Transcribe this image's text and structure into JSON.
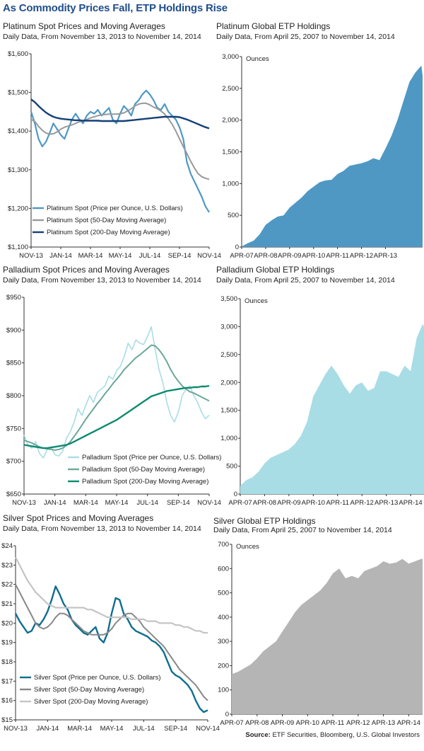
{
  "title": "As Commodity Prices Fall, ETP Holdings Rise",
  "source_label": "Source:",
  "source_text": "ETF Securities, Bloomberg, U.S. Global Investors",
  "colors": {
    "title": "#1f4e8c",
    "platinum": "#4f98c4",
    "platinum_200": "#153f78",
    "palladium": "#a8dde6",
    "palladium_ma": "#6ba899",
    "palladium_200": "#0e8a70",
    "silver": "#0f6e8f",
    "silver_50": "#888888",
    "silver_200": "#c4c4c4",
    "silver_etp": "#b5b5b5"
  },
  "chart_data": [
    {
      "id": "platinum-spot",
      "type": "line",
      "title": "Platinum Spot Prices and Moving Averages",
      "subtitle": "Daily Data, From November 13, 2013 to November 14, 2014",
      "ylim": [
        1100,
        1600
      ],
      "yticks": [
        "$1,100",
        "$1,200",
        "$1,300",
        "$1,400",
        "$1,500",
        "$1,600"
      ],
      "xticks": [
        "NOV-13",
        "JAN-14",
        "MAR-14",
        "MAY-14",
        "JUL-14",
        "SEP-14",
        "NOV-14"
      ],
      "grid": false,
      "legend": "bottom-left",
      "x": [
        0,
        0.25,
        0.5,
        0.75,
        1,
        1.25,
        1.5,
        1.75,
        2,
        2.25,
        2.5,
        2.75,
        3,
        3.25,
        3.5,
        3.75,
        4,
        4.25,
        4.5,
        4.75,
        5,
        5.25,
        5.5,
        5.75,
        6,
        6.25,
        6.5,
        6.75,
        7,
        7.25,
        7.5,
        7.75,
        8,
        8.25,
        8.5,
        8.75,
        9,
        9.25,
        9.5,
        9.75,
        10,
        10.25,
        10.5,
        10.75,
        11,
        11.25,
        11.5,
        11.75,
        12
      ],
      "series": [
        {
          "name": "Platinum Spot (Price per Ounce, U.S. Dollars)",
          "color": "#4f98c4",
          "width": 2.2,
          "values": [
            1450,
            1420,
            1380,
            1360,
            1372,
            1395,
            1420,
            1405,
            1390,
            1380,
            1405,
            1430,
            1445,
            1430,
            1420,
            1440,
            1450,
            1445,
            1455,
            1440,
            1450,
            1460,
            1430,
            1420,
            1445,
            1465,
            1455,
            1440,
            1470,
            1480,
            1495,
            1505,
            1495,
            1480,
            1460,
            1455,
            1470,
            1450,
            1440,
            1430,
            1410,
            1380,
            1320,
            1290,
            1270,
            1250,
            1230,
            1205,
            1190
          ]
        },
        {
          "name": "Platinum Spot (50-Day Moving Average)",
          "color": "#999999",
          "width": 2,
          "values": [
            1430,
            1425,
            1412,
            1402,
            1395,
            1392,
            1393,
            1398,
            1405,
            1410,
            1413,
            1416,
            1420,
            1424,
            1427,
            1430,
            1434,
            1437,
            1440,
            1442,
            1443,
            1444,
            1444,
            1444,
            1445,
            1447,
            1452,
            1458,
            1465,
            1470,
            1472,
            1472,
            1468,
            1462,
            1458,
            1452,
            1444,
            1432,
            1418,
            1400,
            1380,
            1360,
            1342,
            1322,
            1305,
            1290,
            1282,
            1278,
            1275
          ]
        },
        {
          "name": "Platinum Spot (200-Day Moving Average)",
          "color": "#153f78",
          "width": 2.4,
          "values": [
            1482,
            1475,
            1465,
            1456,
            1448,
            1442,
            1437,
            1434,
            1432,
            1431,
            1430,
            1429,
            1428,
            1428,
            1427,
            1427,
            1427,
            1427,
            1427,
            1426,
            1426,
            1426,
            1426,
            1426,
            1426,
            1426,
            1427,
            1428,
            1429,
            1430,
            1431,
            1432,
            1433,
            1434,
            1435,
            1436,
            1437,
            1437,
            1437,
            1437,
            1436,
            1433,
            1430,
            1426,
            1422,
            1418,
            1414,
            1410,
            1407
          ]
        }
      ]
    },
    {
      "id": "platinum-etp",
      "type": "area",
      "title": "Platinum Global ETP Holdings",
      "subtitle": "Daily Data, From April 25, 2007 to November 14, 2014",
      "ylabel": "Ounces",
      "unit_label": "Ounces",
      "ylim": [
        0,
        3000
      ],
      "yticks": [
        "0",
        "500",
        "1,000",
        "1,500",
        "2,000",
        "2,500",
        "3,000"
      ],
      "xticks": [
        "APR-07",
        "APR-08",
        "APR-09",
        "APR-10",
        "APR-11",
        "APR-12",
        "APR-13"
      ],
      "color": "#4f98c4",
      "x": [
        0,
        0.25,
        0.5,
        0.75,
        1,
        1.25,
        1.5,
        1.75,
        2,
        2.25,
        2.5,
        2.75,
        3,
        3.25,
        3.5,
        3.75,
        4,
        4.25,
        4.5,
        4.75,
        5,
        5.25,
        5.5,
        5.75,
        6,
        6.25,
        6.5,
        6.75,
        7,
        7.25,
        7.5,
        7.55
      ],
      "values": [
        10,
        60,
        100,
        200,
        350,
        420,
        480,
        500,
        620,
        700,
        780,
        880,
        950,
        1020,
        1050,
        1060,
        1150,
        1200,
        1280,
        1300,
        1320,
        1350,
        1400,
        1370,
        1550,
        1750,
        2000,
        2300,
        2600,
        2750,
        2860,
        2700
      ]
    },
    {
      "id": "palladium-spot",
      "type": "line",
      "title": "Palladium Spot Prices and Moving Averages",
      "subtitle": "Daily Data, From November 13, 2013 to November 14, 2014",
      "ylim": [
        650,
        950
      ],
      "yticks": [
        "$650",
        "$700",
        "$750",
        "$800",
        "$850",
        "$900",
        "$950"
      ],
      "xticks": [
        "NOV-13",
        "JAN-14",
        "MAR-14",
        "MAY-14",
        "JUL-14",
        "SEP-14",
        "NOV-14"
      ],
      "grid": false,
      "legend": "bottom-center",
      "x": [
        0,
        0.25,
        0.5,
        0.75,
        1,
        1.25,
        1.5,
        1.75,
        2,
        2.25,
        2.5,
        2.75,
        3,
        3.25,
        3.5,
        3.75,
        4,
        4.25,
        4.5,
        4.75,
        5,
        5.25,
        5.5,
        5.75,
        6,
        6.25,
        6.5,
        6.75,
        7,
        7.25,
        7.5,
        7.75,
        8,
        8.25,
        8.5,
        8.75,
        9,
        9.25,
        9.5,
        9.75,
        10,
        10.25,
        10.5,
        10.75,
        11,
        11.25,
        11.5,
        11.75,
        12
      ],
      "series": [
        {
          "name": "Palladium Spot (Price per Ounce, U.S. Dollars)",
          "color": "#a8dde6",
          "width": 1.6,
          "values": [
            740,
            725,
            720,
            730,
            712,
            705,
            718,
            722,
            710,
            708,
            715,
            735,
            745,
            760,
            780,
            770,
            785,
            800,
            790,
            805,
            810,
            815,
            830,
            825,
            838,
            845,
            860,
            880,
            870,
            885,
            880,
            878,
            890,
            905,
            870,
            840,
            820,
            790,
            770,
            760,
            775,
            800,
            810,
            815,
            800,
            790,
            775,
            765,
            770
          ]
        },
        {
          "name": "Palladium Spot (50-Day Moving Average)",
          "color": "#6ba899",
          "width": 2,
          "values": [
            732,
            730,
            728,
            725,
            722,
            720,
            719,
            718,
            717,
            718,
            720,
            724,
            730,
            738,
            746,
            755,
            764,
            772,
            780,
            788,
            795,
            803,
            810,
            818,
            825,
            832,
            840,
            846,
            852,
            858,
            862,
            867,
            872,
            877,
            876,
            870,
            862,
            852,
            840,
            830,
            822,
            815,
            810,
            806,
            804,
            801,
            798,
            795,
            792
          ]
        },
        {
          "name": "Palladium Spot (200-Day Moving Average)",
          "color": "#0e8a70",
          "width": 2.4,
          "values": [
            725,
            724,
            723,
            722,
            721,
            720,
            720,
            721,
            722,
            723,
            724,
            725,
            727,
            730,
            733,
            736,
            739,
            742,
            745,
            748,
            751,
            754,
            757,
            760,
            763,
            767,
            771,
            775,
            779,
            783,
            787,
            791,
            795,
            799,
            801,
            803,
            805,
            807,
            808,
            809,
            810,
            811,
            812,
            812,
            813,
            813,
            814,
            814,
            815
          ]
        }
      ]
    },
    {
      "id": "palladium-etp",
      "type": "area",
      "title": "Palladium Global ETP Holdings",
      "subtitle": "Daily Data, From April 25, 2007 to November 14, 2014",
      "ylabel": "Ounces",
      "unit_label": "Ounces",
      "ylim": [
        0,
        3500
      ],
      "yticks": [
        "0",
        "500",
        "1,000",
        "1,500",
        "2,000",
        "2,500",
        "3,000",
        "3,500"
      ],
      "xticks": [
        "APR-07",
        "APR-08",
        "APR-09",
        "APR-10",
        "APR-11",
        "APR-12",
        "APR-13",
        "APR-14"
      ],
      "color": "#a8dde6",
      "x": [
        0,
        0.25,
        0.5,
        0.75,
        1,
        1.25,
        1.5,
        1.75,
        2,
        2.25,
        2.5,
        2.75,
        3,
        3.25,
        3.5,
        3.75,
        4,
        4.25,
        4.5,
        4.75,
        5,
        5.25,
        5.5,
        5.75,
        6,
        6.25,
        6.5,
        6.75,
        7,
        7.25,
        7.5,
        7.55
      ],
      "values": [
        150,
        250,
        300,
        400,
        550,
        650,
        700,
        750,
        800,
        900,
        1050,
        1300,
        1750,
        1950,
        2150,
        2300,
        2150,
        1950,
        1800,
        1950,
        2000,
        1850,
        1900,
        2200,
        2200,
        2150,
        2100,
        2300,
        2200,
        2800,
        3050,
        3000
      ]
    },
    {
      "id": "silver-spot",
      "type": "line",
      "title": "Silver Spot Prices and Moving Averages",
      "subtitle": "Daily Data, From November 13, 2013 to November 14, 2014",
      "ylim": [
        15,
        24
      ],
      "yticks": [
        "$15",
        "$16",
        "$17",
        "$18",
        "$19",
        "$20",
        "$21",
        "$22",
        "$23",
        "$24"
      ],
      "xticks": [
        "NOV-13",
        "JAN-14",
        "MAR-14",
        "MAY-14",
        "JUL-14",
        "SEP-14",
        "NOV-14"
      ],
      "grid": false,
      "legend": "bottom-left",
      "x": [
        0,
        0.25,
        0.5,
        0.75,
        1,
        1.25,
        1.5,
        1.75,
        2,
        2.25,
        2.5,
        2.75,
        3,
        3.25,
        3.5,
        3.75,
        4,
        4.25,
        4.5,
        4.75,
        5,
        5.25,
        5.5,
        5.75,
        6,
        6.25,
        6.5,
        6.75,
        7,
        7.25,
        7.5,
        7.75,
        8,
        8.25,
        8.5,
        8.75,
        9,
        9.25,
        9.5,
        9.75,
        10,
        10.25,
        10.5,
        10.75,
        11,
        11.25,
        11.5,
        11.75,
        12
      ],
      "series": [
        {
          "name": "Silver Spot (Price per Ounce, U.S. Dollars)",
          "color": "#0f6e8f",
          "width": 2.4,
          "values": [
            20.5,
            20.1,
            19.8,
            19.5,
            19.6,
            20.0,
            19.9,
            20.2,
            20.6,
            21.2,
            21.9,
            21.5,
            21.0,
            20.7,
            20.2,
            19.9,
            19.7,
            19.5,
            19.4,
            19.6,
            19.8,
            19.2,
            19.0,
            19.5,
            20.5,
            21.3,
            21.2,
            20.5,
            20.2,
            19.8,
            19.6,
            19.5,
            19.4,
            19.3,
            19.1,
            19.0,
            18.8,
            18.5,
            18.0,
            17.5,
            17.3,
            17.2,
            17.0,
            16.8,
            16.5,
            16.0,
            15.6,
            15.4,
            15.5
          ]
        },
        {
          "name": "Silver Spot (50-Day Moving Average)",
          "color": "#888888",
          "width": 2,
          "values": [
            22.0,
            21.6,
            21.2,
            20.8,
            20.4,
            20.0,
            19.8,
            19.7,
            19.8,
            20.0,
            20.3,
            20.5,
            20.5,
            20.4,
            20.2,
            20.0,
            19.8,
            19.6,
            19.5,
            19.4,
            19.4,
            19.4,
            19.4,
            19.5,
            19.7,
            20.0,
            20.2,
            20.4,
            20.5,
            20.5,
            20.3,
            20.1,
            19.8,
            19.6,
            19.4,
            19.2,
            19.0,
            18.8,
            18.5,
            18.2,
            17.9,
            17.6,
            17.4,
            17.2,
            17.0,
            16.8,
            16.5,
            16.2,
            16.0
          ]
        },
        {
          "name": "Silver Spot (200-Day Moving Average)",
          "color": "#c4c4c4",
          "width": 2.2,
          "values": [
            23.4,
            23.0,
            22.6,
            22.2,
            21.9,
            21.6,
            21.4,
            21.2,
            21.0,
            20.9,
            20.8,
            20.8,
            20.8,
            20.8,
            20.8,
            20.8,
            20.8,
            20.8,
            20.7,
            20.7,
            20.6,
            20.5,
            20.4,
            20.3,
            20.3,
            20.3,
            20.3,
            20.3,
            20.3,
            20.2,
            20.2,
            20.2,
            20.2,
            20.1,
            20.1,
            20.1,
            20.0,
            20.0,
            20.0,
            20.0,
            19.9,
            19.9,
            19.8,
            19.8,
            19.7,
            19.6,
            19.6,
            19.5,
            19.5
          ]
        }
      ]
    },
    {
      "id": "silver-etp",
      "type": "area",
      "title": "Silver Global ETP Holdings",
      "subtitle": "Daily Data, From April 25, 2007 to November 14, 2014",
      "ylabel": "Ounces",
      "unit_label": "Ounces",
      "ylim": [
        0,
        700
      ],
      "yticks": [
        "0",
        "100",
        "200",
        "300",
        "400",
        "500",
        "600",
        "700"
      ],
      "xticks": [
        "APR-07",
        "APR-08",
        "APR-09",
        "APR-10",
        "APR-11",
        "APR-12",
        "APR-13",
        "APR-14"
      ],
      "color": "#b5b5b5",
      "x": [
        0,
        0.25,
        0.5,
        0.75,
        1,
        1.25,
        1.5,
        1.75,
        2,
        2.25,
        2.5,
        2.75,
        3,
        3.25,
        3.5,
        3.75,
        4,
        4.25,
        4.5,
        4.75,
        5,
        5.25,
        5.5,
        5.75,
        6,
        6.25,
        6.5,
        6.75,
        7,
        7.25,
        7.5,
        7.55
      ],
      "values": [
        165,
        175,
        190,
        205,
        230,
        260,
        280,
        300,
        340,
        380,
        420,
        450,
        470,
        490,
        510,
        540,
        580,
        600,
        560,
        570,
        560,
        590,
        600,
        610,
        630,
        620,
        625,
        640,
        620,
        630,
        640,
        640
      ]
    }
  ]
}
